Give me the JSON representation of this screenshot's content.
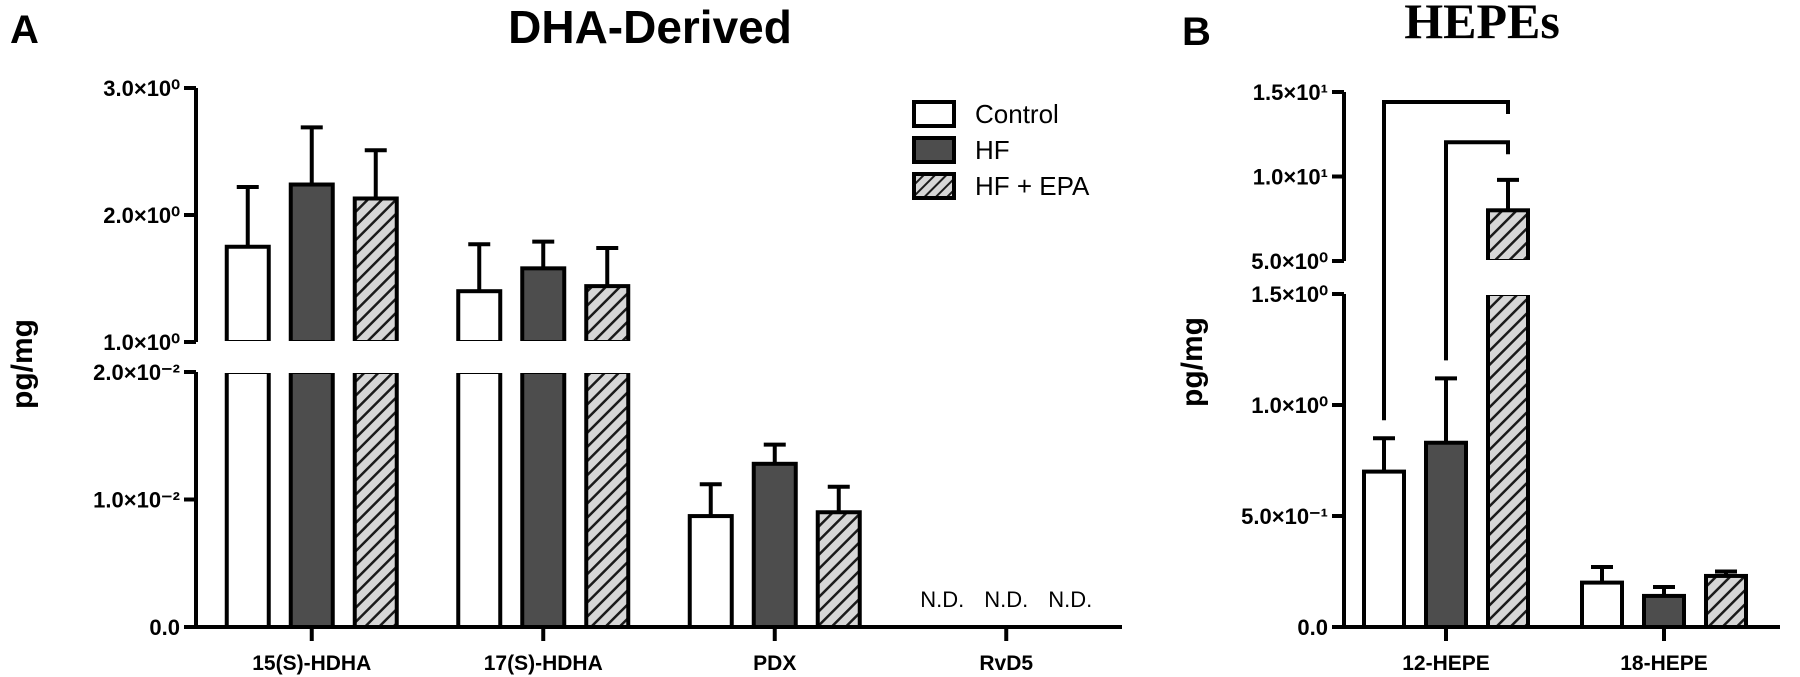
{
  "colors": {
    "control": "#ffffff",
    "hf": "#4d4d4d",
    "hf_epa_bg": "#d6d6d6",
    "hf_epa_hatch": "#1a1a1a",
    "axis": "#000000"
  },
  "chart_data": [
    {
      "panel": "A",
      "title": "DHA-Derived",
      "type": "bar",
      "ylabel": "pg/mg",
      "categories": [
        "15(S)-HDHA",
        "17(S)-HDHA",
        "PDX",
        "RvD5"
      ],
      "series": [
        {
          "name": "Control",
          "values": [
            1.75,
            1.4,
            0.0087,
            null
          ],
          "errors": [
            0.47,
            0.37,
            0.0025,
            null
          ]
        },
        {
          "name": "HF",
          "values": [
            2.24,
            1.58,
            0.0128,
            null
          ],
          "errors": [
            0.45,
            0.21,
            0.0015,
            null
          ]
        },
        {
          "name": "HF + EPA",
          "values": [
            2.13,
            1.44,
            0.009,
            null
          ],
          "errors": [
            0.38,
            0.3,
            0.002,
            null
          ]
        }
      ],
      "not_detected_label": "N.D.",
      "y_axis_break": {
        "lower_range": [
          0,
          0.02
        ],
        "upper_range": [
          1.0,
          3.0
        ],
        "lower_ticks": [
          "0.0",
          "1.0×10⁻²",
          "2.0×10⁻²"
        ],
        "upper_ticks": [
          "1.0×10⁰",
          "2.0×10⁰",
          "3.0×10⁰"
        ]
      },
      "legend": {
        "position": "top-right",
        "entries": [
          "Control",
          "HF",
          "HF + EPA"
        ]
      },
      "grid": false
    },
    {
      "panel": "B",
      "title": "HEPEs",
      "type": "bar",
      "ylabel": "pg/mg",
      "categories": [
        "12-HEPE",
        "18-HEPE"
      ],
      "series": [
        {
          "name": "Control",
          "values": [
            0.7,
            0.2
          ],
          "errors": [
            0.15,
            0.07
          ]
        },
        {
          "name": "HF",
          "values": [
            0.83,
            0.14
          ],
          "errors": [
            0.29,
            0.04
          ]
        },
        {
          "name": "HF + EPA",
          "values": [
            8.0,
            0.23
          ],
          "errors": [
            1.8,
            0.02
          ]
        }
      ],
      "y_axis_break": {
        "lower_range": [
          0,
          1.5
        ],
        "upper_range": [
          5.0,
          15.0
        ],
        "lower_ticks": [
          "0.0",
          "5.0×10⁻¹",
          "1.0×10⁰",
          "1.5×10⁰"
        ],
        "upper_ticks": [
          "5.0×10⁰",
          "1.0×10¹",
          "1.5×10¹"
        ]
      },
      "significance_brackets": [
        {
          "from": "Control",
          "to": "HF + EPA",
          "category": "12-HEPE"
        },
        {
          "from": "HF",
          "to": "HF + EPA",
          "category": "12-HEPE"
        }
      ],
      "grid": false
    }
  ]
}
